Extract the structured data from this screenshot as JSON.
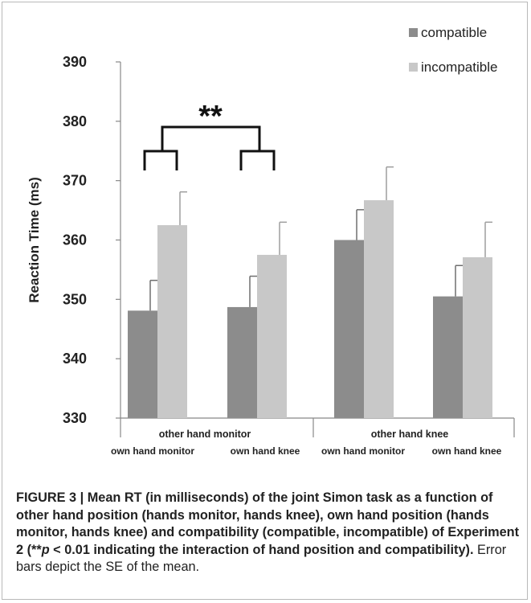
{
  "chart_data": {
    "type": "bar",
    "ylabel": "Reaction Time (ms)",
    "ylim": [
      330,
      390
    ],
    "yticks": [
      "330",
      "340",
      "350",
      "360",
      "370",
      "380",
      "390"
    ],
    "groups": [
      {
        "label": "other hand monitor",
        "subcategories": [
          "own hand monitor",
          "own hand knee"
        ]
      },
      {
        "label": "other hand knee",
        "subcategories": [
          "own hand monitor",
          "own hand knee"
        ]
      }
    ],
    "categories": [
      "own hand monitor",
      "own hand knee",
      "own hand monitor",
      "own hand knee"
    ],
    "series": [
      {
        "name": "compatible",
        "color": "#8c8c8c",
        "values": [
          348.1,
          348.7,
          360.0,
          350.5
        ],
        "errors": [
          5.1,
          5.2,
          5.1,
          5.2
        ]
      },
      {
        "name": "incompatible",
        "color": "#c8c8c8",
        "values": [
          362.5,
          357.5,
          366.7,
          357.1
        ],
        "errors": [
          5.6,
          5.5,
          5.6,
          5.9
        ]
      }
    ],
    "annotation": "**",
    "grid": false,
    "legend_position": "top-right"
  },
  "caption": {
    "label": "FIGURE 3 |",
    "bold_part1": " Mean RT (in milliseconds) of the joint Simon task as a function of other hand position (hands monitor, hands knee), own hand position (hands monitor, hands knee) and compatibility (compatible, incompatible) of Experiment 2 (**",
    "p_symbol": "p",
    "bold_part2": " < 0.01 indicating the interaction of hand position and compatibility).",
    "rest": " Error bars depict the SE of the mean."
  }
}
